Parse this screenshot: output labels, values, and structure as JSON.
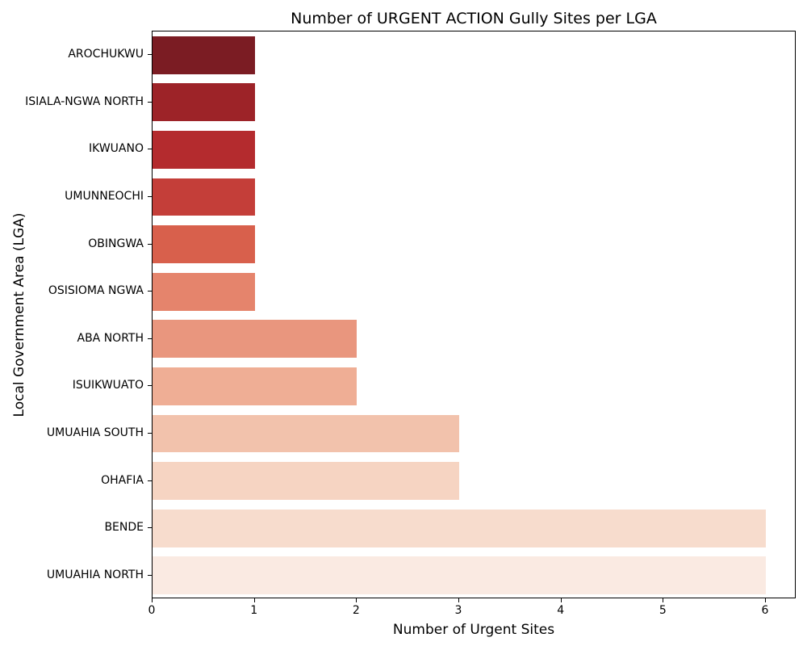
{
  "chart_data": {
    "type": "bar",
    "orientation": "horizontal",
    "title": "Number of URGENT ACTION Gully Sites per LGA",
    "xlabel": "Number of Urgent Sites",
    "ylabel": "Local Government Area (LGA)",
    "categories": [
      "AROCHUKWU",
      "ISIALA-NGWA NORTH",
      "IKWUANO",
      "UMUNNEOCHI",
      "OBINGWA",
      "OSISIOMA NGWA",
      "ABA NORTH",
      "ISUIKWUATO",
      "UMUAHIA SOUTH",
      "OHAFIA",
      "BENDE",
      "UMUAHIA NORTH"
    ],
    "values": [
      1,
      1,
      1,
      1,
      1,
      1,
      2,
      2,
      3,
      3,
      6,
      6
    ],
    "bar_colors": [
      "#7b1c23",
      "#9d2328",
      "#b42b2e",
      "#c43e39",
      "#d8604c",
      "#e5846c",
      "#e9967e",
      "#efae95",
      "#f2c2ac",
      "#f6d4c2",
      "#f7dccd",
      "#faeae2"
    ],
    "x_ticks": [
      0,
      1,
      2,
      3,
      4,
      5,
      6
    ],
    "xlim": [
      0,
      6.3
    ],
    "grid": false,
    "legend": null,
    "axis_color": "#000000",
    "background_color": "#ffffff"
  }
}
